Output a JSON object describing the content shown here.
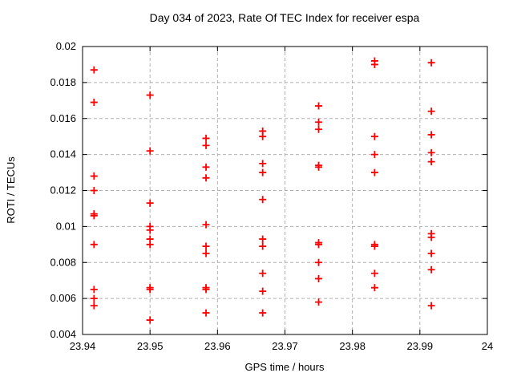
{
  "page": {
    "background": "#ffffff"
  },
  "chart_data": {
    "type": "scatter",
    "title": "Day 034 of 2023, Rate Of TEC Index for receiver espa",
    "xlabel": "GPS time / hours",
    "ylabel": "ROTI / TECUs",
    "xlim": [
      23.94,
      24
    ],
    "ylim": [
      0.004,
      0.02
    ],
    "xticks": {
      "values": [
        23.94,
        23.95,
        23.96,
        23.97,
        23.98,
        23.99,
        24
      ],
      "labels": [
        "23.94",
        "23.95",
        "23.96",
        "23.97",
        "23.98",
        "23.99",
        "24"
      ]
    },
    "yticks": {
      "values": [
        0.004,
        0.006,
        0.008,
        0.01,
        0.012,
        0.014,
        0.016,
        0.018,
        0.02
      ],
      "labels": [
        "0.004",
        "0.006",
        "0.008",
        "0.01",
        "0.012",
        "0.014",
        "0.016",
        "0.018",
        "0.02"
      ]
    },
    "grid": true,
    "legend_position": "none",
    "grid_color": "#b0b0b0",
    "axis_color": "#000000",
    "marker": {
      "shape": "plus",
      "color": "#ff0000",
      "size": 9
    },
    "series": [
      {
        "name": "ROTI",
        "points": [
          [
            23.9417,
            0.0187
          ],
          [
            23.9417,
            0.0169
          ],
          [
            23.9417,
            0.0128
          ],
          [
            23.9417,
            0.012
          ],
          [
            23.9417,
            0.0107
          ],
          [
            23.9417,
            0.0106
          ],
          [
            23.9417,
            0.009
          ],
          [
            23.9417,
            0.0065
          ],
          [
            23.9417,
            0.006
          ],
          [
            23.9417,
            0.0056
          ],
          [
            23.95,
            0.0173
          ],
          [
            23.95,
            0.0142
          ],
          [
            23.95,
            0.0113
          ],
          [
            23.95,
            0.01
          ],
          [
            23.95,
            0.0098
          ],
          [
            23.95,
            0.0093
          ],
          [
            23.95,
            0.009
          ],
          [
            23.95,
            0.0066
          ],
          [
            23.95,
            0.0065
          ],
          [
            23.95,
            0.0048
          ],
          [
            23.9583,
            0.0149
          ],
          [
            23.9583,
            0.0145
          ],
          [
            23.9583,
            0.0133
          ],
          [
            23.9583,
            0.0127
          ],
          [
            23.9583,
            0.0101
          ],
          [
            23.9583,
            0.0089
          ],
          [
            23.9583,
            0.0085
          ],
          [
            23.9583,
            0.0066
          ],
          [
            23.9583,
            0.0065
          ],
          [
            23.9583,
            0.0052
          ],
          [
            23.9667,
            0.0153
          ],
          [
            23.9667,
            0.015
          ],
          [
            23.9667,
            0.0135
          ],
          [
            23.9667,
            0.013
          ],
          [
            23.9667,
            0.0115
          ],
          [
            23.9667,
            0.0093
          ],
          [
            23.9667,
            0.0089
          ],
          [
            23.9667,
            0.0074
          ],
          [
            23.9667,
            0.0064
          ],
          [
            23.9667,
            0.0052
          ],
          [
            23.975,
            0.0167
          ],
          [
            23.975,
            0.0158
          ],
          [
            23.975,
            0.0154
          ],
          [
            23.975,
            0.0134
          ],
          [
            23.975,
            0.0133
          ],
          [
            23.975,
            0.0091
          ],
          [
            23.975,
            0.009
          ],
          [
            23.975,
            0.008
          ],
          [
            23.975,
            0.0071
          ],
          [
            23.975,
            0.0058
          ],
          [
            23.9833,
            0.0192
          ],
          [
            23.9833,
            0.019
          ],
          [
            23.9833,
            0.015
          ],
          [
            23.9833,
            0.014
          ],
          [
            23.9833,
            0.013
          ],
          [
            23.9833,
            0.009
          ],
          [
            23.9833,
            0.0089
          ],
          [
            23.9833,
            0.0074
          ],
          [
            23.9833,
            0.0066
          ],
          [
            23.9917,
            0.0191
          ],
          [
            23.9917,
            0.0164
          ],
          [
            23.9917,
            0.0151
          ],
          [
            23.9917,
            0.0141
          ],
          [
            23.9917,
            0.0136
          ],
          [
            23.9917,
            0.0096
          ],
          [
            23.9917,
            0.0094
          ],
          [
            23.9917,
            0.0085
          ],
          [
            23.9917,
            0.0076
          ],
          [
            23.9917,
            0.0056
          ]
        ]
      }
    ]
  }
}
